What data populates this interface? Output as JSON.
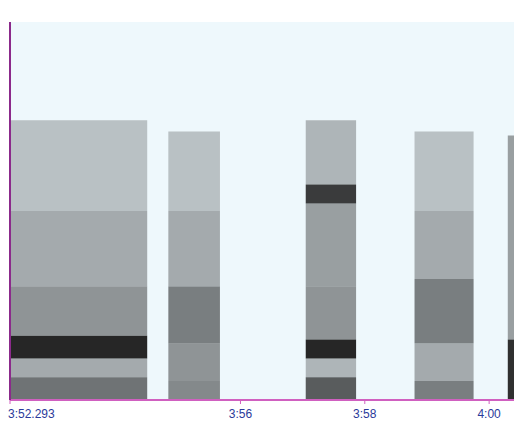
{
  "chart_data": {
    "type": "spectrogram",
    "xlim": [
      232.293,
      240.4
    ],
    "xticks": [
      {
        "value": 232.293,
        "label": "3:52.293"
      },
      {
        "value": 236,
        "label": "3:56"
      },
      {
        "value": 238,
        "label": "3:58"
      },
      {
        "value": 240,
        "label": "4:00"
      }
    ],
    "ylim": [
      0,
      10
    ],
    "tick_labels": "x",
    "color": "#1a1a1a",
    "segments": [
      {
        "start": 232.293,
        "end": 234.5,
        "bands": [
          {
            "lo": 0,
            "hi": 0.6,
            "level": 0.6
          },
          {
            "lo": 0.6,
            "hi": 1.1,
            "level": 0.35
          },
          {
            "lo": 1.1,
            "hi": 1.7,
            "level": 0.95
          },
          {
            "lo": 1.7,
            "hi": 3,
            "level": 0.45
          },
          {
            "lo": 3,
            "hi": 5,
            "level": 0.35
          },
          {
            "lo": 5,
            "hi": 7.4,
            "level": 0.25
          }
        ]
      },
      {
        "start": 234.84,
        "end": 235.67,
        "bands": [
          {
            "lo": 0,
            "hi": 0.5,
            "level": 0.5
          },
          {
            "lo": 0.5,
            "hi": 1.5,
            "level": 0.45
          },
          {
            "lo": 1.5,
            "hi": 3,
            "level": 0.55
          },
          {
            "lo": 3,
            "hi": 5,
            "level": 0.35
          },
          {
            "lo": 5,
            "hi": 7.1,
            "level": 0.25
          }
        ]
      },
      {
        "start": 237.05,
        "end": 237.86,
        "bands": [
          {
            "lo": 0,
            "hi": 0.6,
            "level": 0.7
          },
          {
            "lo": 0.6,
            "hi": 1.1,
            "level": 0.3
          },
          {
            "lo": 1.1,
            "hi": 1.6,
            "level": 0.95
          },
          {
            "lo": 1.6,
            "hi": 3,
            "level": 0.45
          },
          {
            "lo": 3,
            "hi": 5.2,
            "level": 0.4
          },
          {
            "lo": 5.2,
            "hi": 5.7,
            "level": 0.85
          },
          {
            "lo": 5.7,
            "hi": 7.4,
            "level": 0.3
          }
        ]
      },
      {
        "start": 238.8,
        "end": 239.75,
        "bands": [
          {
            "lo": 0,
            "hi": 0.5,
            "level": 0.55
          },
          {
            "lo": 0.5,
            "hi": 1.5,
            "level": 0.35
          },
          {
            "lo": 1.5,
            "hi": 3.2,
            "level": 0.55
          },
          {
            "lo": 3.2,
            "hi": 5,
            "level": 0.35
          },
          {
            "lo": 5,
            "hi": 7.1,
            "level": 0.25
          }
        ]
      },
      {
        "start": 240.3,
        "end": 240.4,
        "bands": [
          {
            "lo": 0,
            "hi": 1.6,
            "level": 0.9
          },
          {
            "lo": 1.6,
            "hi": 7,
            "level": 0.4
          }
        ]
      }
    ]
  }
}
